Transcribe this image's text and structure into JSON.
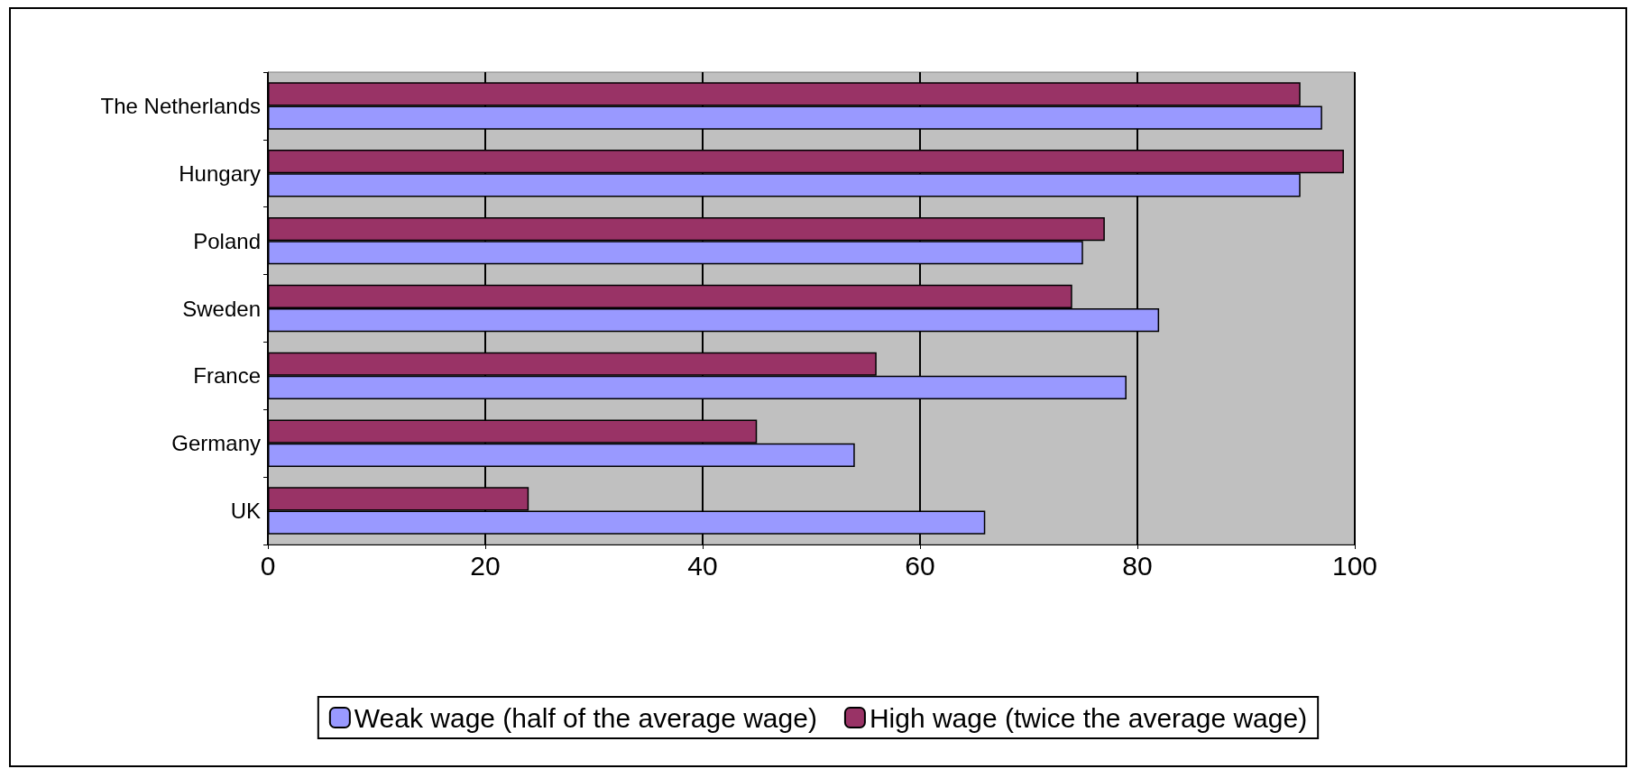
{
  "chart_data": {
    "type": "bar",
    "orientation": "horizontal",
    "categories": [
      "The Netherlands",
      "Hungary",
      "Poland",
      "Sweden",
      "France",
      "Germany",
      "UK"
    ],
    "series": [
      {
        "name": "Weak wage (half of the average wage)",
        "color": "#9999ff",
        "values": [
          97,
          95,
          75,
          82,
          79,
          54,
          66
        ]
      },
      {
        "name": "High wage (twice the average wage)",
        "color": "#993366",
        "values": [
          95,
          99,
          77,
          74,
          56,
          45,
          24
        ]
      }
    ],
    "xlim": [
      0,
      100
    ],
    "xticks": [
      0,
      20,
      40,
      60,
      80,
      100
    ],
    "grid": "x",
    "legend": "bottom"
  }
}
